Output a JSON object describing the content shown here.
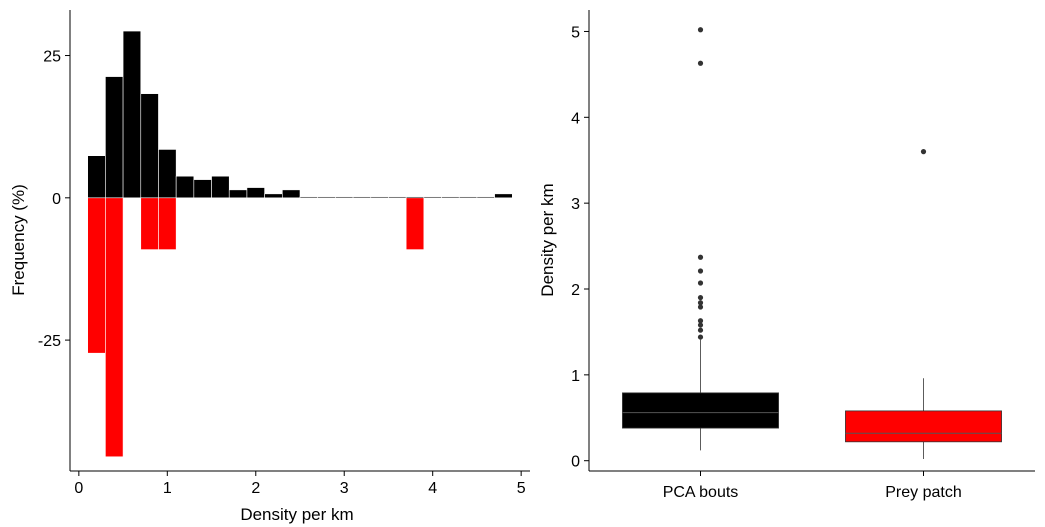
{
  "chart_data": [
    {
      "type": "bar",
      "subtype": "mirrored-histogram",
      "title": "",
      "xlabel": "Density per km",
      "ylabel": "Frequency (%)",
      "xlim": [
        -0.1,
        5.1
      ],
      "ylim": [
        -48,
        33
      ],
      "xticks": [
        "0",
        "1",
        "2",
        "3",
        "4",
        "5"
      ],
      "yticks": [
        "25",
        "0",
        "-25"
      ],
      "grid": false,
      "legend": "none",
      "bin_width": 0.2,
      "series": [
        {
          "color": "#000000",
          "bin_centers": [
            0.2,
            0.4,
            0.6,
            0.8,
            1.0,
            1.2,
            1.4,
            1.6,
            1.8,
            2.0,
            2.2,
            2.4,
            2.6,
            2.8,
            3.0,
            3.2,
            3.4,
            3.6,
            3.8,
            4.0,
            4.2,
            4.4,
            4.6,
            4.8
          ],
          "values": [
            7.4,
            21.3,
            29.3,
            18.3,
            8.5,
            3.8,
            3.2,
            3.8,
            1.4,
            1.8,
            0.7,
            1.4,
            0.2,
            0.2,
            0.2,
            0.2,
            0.2,
            0.2,
            0.2,
            0.2,
            0.2,
            0.2,
            0.2,
            0.7
          ]
        },
        {
          "color": "#ff0000",
          "bin_centers": [
            0.2,
            0.4,
            0.8,
            1.0,
            3.8
          ],
          "values": [
            -27.3,
            -45.5,
            -9.1,
            -9.1,
            -9.1
          ]
        }
      ]
    },
    {
      "type": "box",
      "title": "",
      "xlabel": "",
      "ylabel": "Density per km",
      "ylim": [
        -0.12,
        5.25
      ],
      "yticks": [
        "0",
        "1",
        "2",
        "3",
        "4",
        "5"
      ],
      "categories": [
        "PCA bouts",
        "Prey patch"
      ],
      "grid": false,
      "legend": "none",
      "boxes": [
        {
          "category": "PCA bouts",
          "color": "#000000",
          "whisker_low": 0.12,
          "q1": 0.38,
          "median": 0.56,
          "q3": 0.79,
          "whisker_high": 1.41,
          "outliers": [
            1.44,
            1.52,
            1.58,
            1.63,
            1.79,
            1.84,
            1.9,
            2.07,
            2.21,
            2.37,
            4.63,
            5.02
          ]
        },
        {
          "category": "Prey patch",
          "color": "#ff0000",
          "whisker_low": 0.02,
          "q1": 0.22,
          "median": 0.32,
          "q3": 0.58,
          "whisker_high": 0.96,
          "outliers": [
            3.6
          ]
        }
      ]
    }
  ]
}
